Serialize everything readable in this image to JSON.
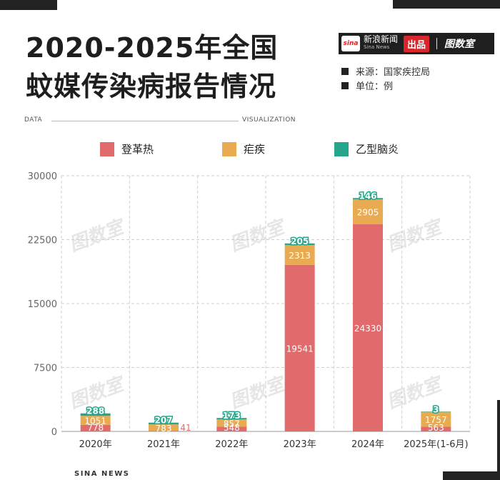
{
  "header": {
    "title_line1": "2020-2025年全国",
    "title_line2": "蚊媒传染病报告情况"
  },
  "brand": {
    "logo_text": "sina",
    "name_cn": "新浪新闻",
    "name_en": "Sina News",
    "chupin": "出品",
    "tushu": "图数室"
  },
  "meta": {
    "source": "来源：国家疾控局",
    "unit": "单位：例"
  },
  "rule": {
    "left": "DATA",
    "right": "VISUALIZATION"
  },
  "footer": "SINA NEWS",
  "watermark": "图数室",
  "chart_data": {
    "type": "bar",
    "stacked": true,
    "categories": [
      "2020年",
      "2021年",
      "2022年",
      "2023年",
      "2024年",
      "2025年(1-6月)"
    ],
    "series": [
      {
        "name": "登革热",
        "color": "#e16a6c",
        "values": [
          778,
          41,
          548,
          19541,
          24330,
          563
        ]
      },
      {
        "name": "疟疾",
        "color": "#e8ab52",
        "values": [
          1051,
          783,
          857,
          2313,
          2905,
          1757
        ]
      },
      {
        "name": "乙型脑炎",
        "color": "#25a58b",
        "values": [
          288,
          207,
          173,
          205,
          146,
          3
        ]
      }
    ],
    "yticks": [
      "0",
      "7500",
      "15000",
      "22500",
      "30000"
    ],
    "ylim": [
      0,
      30000
    ],
    "grid": true,
    "legend": "top"
  }
}
